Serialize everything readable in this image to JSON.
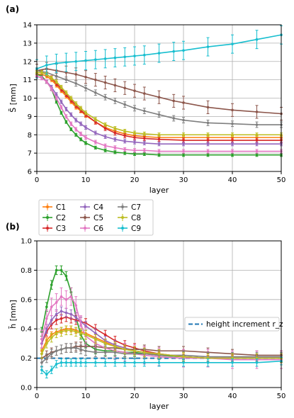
{
  "chart_data": [
    {
      "type": "line",
      "panel_label": "(a)",
      "xlabel": "layer",
      "ylabel": "S̄ [mm]",
      "xlim": [
        0,
        50
      ],
      "ylim": [
        6,
        14
      ],
      "xticks": [
        0,
        10,
        20,
        30,
        40,
        50
      ],
      "yticks": [
        6,
        7,
        8,
        9,
        10,
        11,
        12,
        13,
        14
      ],
      "grid": true,
      "error_bars": true,
      "series": [
        {
          "name": "C1",
          "color": "#ff7f0e",
          "x": [
            0,
            1,
            2,
            3,
            4,
            5,
            6,
            7,
            8,
            9,
            10,
            12,
            14,
            16,
            18,
            20,
            22,
            25,
            30,
            35,
            40,
            45,
            50
          ],
          "y": [
            11.3,
            11.3,
            11.2,
            11.0,
            10.7,
            10.4,
            10.1,
            9.8,
            9.5,
            9.3,
            9.05,
            8.7,
            8.4,
            8.2,
            8.05,
            7.95,
            7.9,
            7.85,
            7.85,
            7.85,
            7.85,
            7.85,
            7.85
          ],
          "err": 0.1
        },
        {
          "name": "C2",
          "color": "#2ca02c",
          "x": [
            0,
            1,
            2,
            3,
            4,
            5,
            6,
            7,
            8,
            9,
            10,
            12,
            14,
            16,
            18,
            20,
            22,
            25,
            30,
            35,
            40,
            45,
            50
          ],
          "y": [
            11.3,
            11.2,
            10.9,
            10.5,
            9.8,
            9.2,
            8.7,
            8.3,
            8.0,
            7.75,
            7.55,
            7.3,
            7.15,
            7.05,
            7.0,
            6.95,
            6.95,
            6.9,
            6.9,
            6.9,
            6.9,
            6.9,
            6.9
          ],
          "err": 0.08
        },
        {
          "name": "C3",
          "color": "#d62728",
          "x": [
            0,
            1,
            2,
            3,
            4,
            5,
            6,
            7,
            8,
            9,
            10,
            12,
            14,
            16,
            18,
            20,
            22,
            25,
            30,
            35,
            40,
            45,
            50
          ],
          "y": [
            11.4,
            11.4,
            11.3,
            11.1,
            10.8,
            10.5,
            10.2,
            9.9,
            9.6,
            9.35,
            9.1,
            8.7,
            8.35,
            8.1,
            7.95,
            7.85,
            7.8,
            7.75,
            7.7,
            7.7,
            7.7,
            7.7,
            7.7
          ],
          "err": 0.12
        },
        {
          "name": "C4",
          "color": "#9467bd",
          "x": [
            0,
            1,
            2,
            3,
            4,
            5,
            6,
            7,
            8,
            9,
            10,
            12,
            14,
            16,
            18,
            20,
            22,
            25,
            30,
            35,
            40,
            45,
            50
          ],
          "y": [
            11.2,
            11.1,
            10.9,
            10.6,
            10.2,
            9.8,
            9.4,
            9.1,
            8.8,
            8.6,
            8.4,
            8.1,
            7.9,
            7.75,
            7.65,
            7.6,
            7.55,
            7.5,
            7.5,
            7.5,
            7.5,
            7.5,
            7.5
          ],
          "err": 0.1
        },
        {
          "name": "C5",
          "color": "#8c564b",
          "x": [
            0,
            2,
            4,
            6,
            8,
            10,
            12,
            14,
            16,
            18,
            20,
            22,
            25,
            28,
            30,
            35,
            40,
            45,
            50
          ],
          "y": [
            11.5,
            11.6,
            11.5,
            11.4,
            11.3,
            11.15,
            11.0,
            10.85,
            10.7,
            10.55,
            10.4,
            10.25,
            10.05,
            9.85,
            9.75,
            9.5,
            9.35,
            9.25,
            9.15
          ],
          "err": 0.35
        },
        {
          "name": "C6",
          "color": "#e377c2",
          "x": [
            0,
            1,
            2,
            3,
            4,
            5,
            6,
            7,
            8,
            9,
            10,
            12,
            14,
            16,
            18,
            20,
            22,
            25,
            30,
            35,
            40,
            45,
            50
          ],
          "y": [
            11.2,
            11.1,
            10.9,
            10.5,
            10.0,
            9.5,
            9.0,
            8.6,
            8.3,
            8.05,
            7.85,
            7.6,
            7.4,
            7.3,
            7.2,
            7.15,
            7.15,
            7.1,
            7.1,
            7.1,
            7.1,
            7.1,
            7.1
          ],
          "err": 0.1
        },
        {
          "name": "C7",
          "color": "#7f7f7f",
          "x": [
            0,
            2,
            4,
            6,
            8,
            10,
            12,
            14,
            16,
            18,
            20,
            22,
            25,
            28,
            30,
            35,
            40,
            45,
            50
          ],
          "y": [
            11.5,
            11.4,
            11.2,
            11.0,
            10.8,
            10.55,
            10.3,
            10.05,
            9.85,
            9.65,
            9.45,
            9.3,
            9.1,
            8.9,
            8.8,
            8.65,
            8.6,
            8.55,
            8.55
          ],
          "err": 0.15
        },
        {
          "name": "C8",
          "color": "#bcbd22",
          "x": [
            0,
            1,
            2,
            3,
            4,
            5,
            6,
            7,
            8,
            9,
            10,
            12,
            14,
            16,
            18,
            20,
            22,
            25,
            30,
            35,
            40,
            45,
            50
          ],
          "y": [
            11.4,
            11.4,
            11.3,
            11.1,
            10.9,
            10.6,
            10.3,
            10.0,
            9.7,
            9.45,
            9.2,
            8.85,
            8.55,
            8.35,
            8.2,
            8.1,
            8.05,
            8.0,
            8.0,
            8.0,
            8.0,
            8.0,
            8.0
          ],
          "err": 0.1
        },
        {
          "name": "C9",
          "color": "#17becf",
          "x": [
            0,
            2,
            4,
            6,
            8,
            10,
            12,
            14,
            16,
            18,
            20,
            22,
            25,
            28,
            30,
            35,
            40,
            45,
            50
          ],
          "y": [
            11.6,
            11.8,
            11.9,
            11.95,
            12.0,
            12.05,
            12.1,
            12.15,
            12.2,
            12.25,
            12.3,
            12.35,
            12.45,
            12.55,
            12.6,
            12.8,
            12.95,
            13.2,
            13.45
          ],
          "err": 0.5
        }
      ]
    },
    {
      "type": "line",
      "panel_label": "(b)",
      "xlabel": "layer",
      "ylabel": "h̄ [mm]",
      "xlim": [
        0,
        50
      ],
      "ylim": [
        0.0,
        1.0
      ],
      "xticks": [
        0,
        10,
        20,
        30,
        40,
        50
      ],
      "yticks": [
        0.0,
        0.2,
        0.4,
        0.6,
        0.8,
        1.0
      ],
      "ytick_labels": [
        "0.0",
        "0.2",
        "0.4",
        "0.6",
        "0.8",
        "1.0"
      ],
      "grid": true,
      "error_bars": true,
      "reference_line": {
        "label": "height increment r_z",
        "y": 0.2,
        "color": "#1f77b4"
      },
      "series": [
        {
          "name": "C1",
          "color": "#ff7f0e",
          "x": [
            1,
            2,
            3,
            4,
            5,
            6,
            7,
            8,
            9,
            10,
            12,
            14,
            16,
            18,
            20,
            22,
            25,
            30,
            35,
            40,
            45,
            50
          ],
          "y": [
            0.25,
            0.32,
            0.36,
            0.38,
            0.39,
            0.4,
            0.4,
            0.39,
            0.38,
            0.37,
            0.34,
            0.31,
            0.28,
            0.26,
            0.25,
            0.24,
            0.22,
            0.21,
            0.2,
            0.2,
            0.2,
            0.2
          ],
          "err": 0.02
        },
        {
          "name": "C2",
          "color": "#2ca02c",
          "x": [
            1,
            2,
            3,
            4,
            5,
            6,
            7,
            8,
            9,
            10,
            12,
            14,
            16,
            18,
            20,
            22,
            25,
            30,
            35,
            40,
            45,
            50
          ],
          "y": [
            0.38,
            0.55,
            0.7,
            0.8,
            0.8,
            0.76,
            0.65,
            0.48,
            0.36,
            0.3,
            0.26,
            0.25,
            0.25,
            0.24,
            0.24,
            0.23,
            0.22,
            0.21,
            0.2,
            0.2,
            0.2,
            0.2
          ],
          "err": 0.03
        },
        {
          "name": "C3",
          "color": "#d62728",
          "x": [
            1,
            2,
            3,
            4,
            5,
            6,
            7,
            8,
            9,
            10,
            12,
            14,
            16,
            18,
            20,
            22,
            25,
            30,
            35,
            40,
            45,
            50
          ],
          "y": [
            0.3,
            0.38,
            0.43,
            0.46,
            0.47,
            0.48,
            0.47,
            0.46,
            0.45,
            0.44,
            0.4,
            0.36,
            0.32,
            0.29,
            0.27,
            0.25,
            0.23,
            0.21,
            0.2,
            0.2,
            0.2,
            0.2
          ],
          "err": 0.03
        },
        {
          "name": "C4",
          "color": "#9467bd",
          "x": [
            1,
            2,
            3,
            4,
            5,
            6,
            7,
            8,
            9,
            10,
            12,
            14,
            16,
            18,
            20,
            22,
            25,
            30,
            35,
            40,
            45,
            50
          ],
          "y": [
            0.3,
            0.4,
            0.46,
            0.5,
            0.52,
            0.51,
            0.5,
            0.48,
            0.45,
            0.42,
            0.37,
            0.32,
            0.29,
            0.27,
            0.25,
            0.24,
            0.23,
            0.21,
            0.2,
            0.2,
            0.2,
            0.2
          ],
          "err": 0.03
        },
        {
          "name": "C5",
          "color": "#8c564b",
          "x": [
            1,
            2,
            3,
            4,
            5,
            6,
            7,
            8,
            9,
            10,
            12,
            14,
            16,
            18,
            20,
            22,
            25,
            30,
            35,
            40,
            45,
            50
          ],
          "y": [
            0.2,
            0.22,
            0.24,
            0.25,
            0.26,
            0.27,
            0.27,
            0.28,
            0.28,
            0.28,
            0.28,
            0.27,
            0.27,
            0.26,
            0.26,
            0.26,
            0.25,
            0.25,
            0.24,
            0.23,
            0.22,
            0.22
          ],
          "err": 0.03
        },
        {
          "name": "C6",
          "color": "#e377c2",
          "x": [
            1,
            2,
            3,
            4,
            5,
            6,
            7,
            8,
            9,
            10,
            12,
            14,
            16,
            18,
            20,
            22,
            25,
            30,
            35,
            40,
            45,
            50
          ],
          "y": [
            0.33,
            0.47,
            0.55,
            0.58,
            0.62,
            0.6,
            0.62,
            0.56,
            0.43,
            0.35,
            0.3,
            0.27,
            0.25,
            0.24,
            0.23,
            0.22,
            0.21,
            0.2,
            0.2,
            0.19,
            0.19,
            0.19
          ],
          "err": 0.06
        },
        {
          "name": "C7",
          "color": "#7f7f7f",
          "x": [
            1,
            2,
            3,
            4,
            5,
            6,
            7,
            8,
            9,
            10,
            12,
            14,
            16,
            18,
            20,
            22,
            25,
            30,
            35,
            40,
            45,
            50
          ],
          "y": [
            0.17,
            0.2,
            0.23,
            0.25,
            0.26,
            0.27,
            0.27,
            0.27,
            0.26,
            0.25,
            0.24,
            0.24,
            0.24,
            0.23,
            0.23,
            0.23,
            0.22,
            0.22,
            0.21,
            0.21,
            0.21,
            0.21
          ],
          "err": 0.03
        },
        {
          "name": "C8",
          "color": "#bcbd22",
          "x": [
            1,
            2,
            3,
            4,
            5,
            6,
            7,
            8,
            9,
            10,
            12,
            14,
            16,
            18,
            20,
            22,
            25,
            30,
            35,
            40,
            45,
            50
          ],
          "y": [
            0.23,
            0.3,
            0.34,
            0.37,
            0.38,
            0.39,
            0.39,
            0.38,
            0.37,
            0.36,
            0.33,
            0.3,
            0.28,
            0.26,
            0.25,
            0.24,
            0.23,
            0.21,
            0.2,
            0.2,
            0.2,
            0.2
          ],
          "err": 0.03
        },
        {
          "name": "C9",
          "color": "#17becf",
          "x": [
            1,
            2,
            3,
            4,
            5,
            6,
            7,
            8,
            9,
            10,
            12,
            14,
            16,
            18,
            20,
            22,
            25,
            30,
            35,
            40,
            45,
            50
          ],
          "y": [
            0.12,
            0.09,
            0.12,
            0.16,
            0.17,
            0.17,
            0.17,
            0.17,
            0.17,
            0.17,
            0.17,
            0.17,
            0.17,
            0.17,
            0.17,
            0.17,
            0.17,
            0.17,
            0.17,
            0.17,
            0.17,
            0.18
          ],
          "err": 0.025
        }
      ]
    }
  ]
}
